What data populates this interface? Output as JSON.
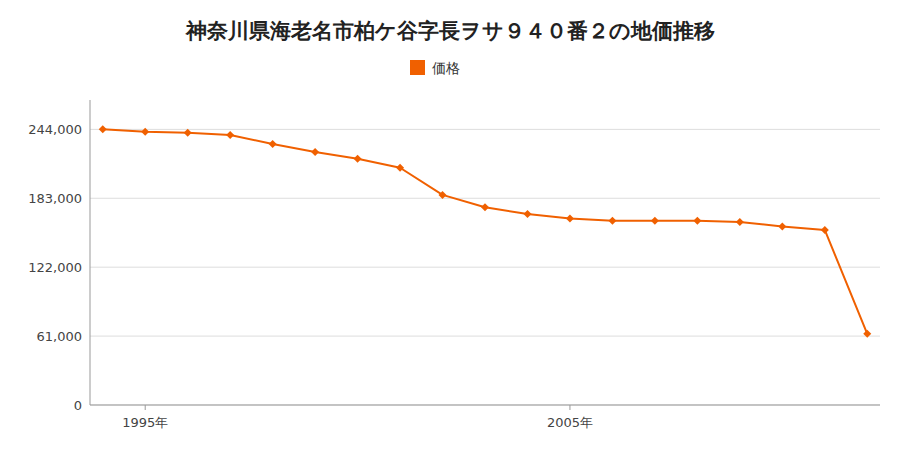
{
  "chart_data": {
    "type": "line",
    "title": "神奈川県海老名市柏ケ谷字長ヲサ９４０番２の地価推移",
    "x": [
      1994,
      1995,
      1996,
      1997,
      1998,
      1999,
      2000,
      2001,
      2002,
      2003,
      2004,
      2005,
      2006,
      2007,
      2008,
      2009,
      2010,
      2011,
      2012
    ],
    "series": [
      {
        "name": "価格",
        "color": "#f06000",
        "marker": "diamond",
        "values": [
          244000,
          242000,
          241000,
          239000,
          231000,
          224000,
          218000,
          210000,
          186000,
          175000,
          169000,
          165000,
          163000,
          163000,
          163000,
          162000,
          158000,
          155000,
          63000
        ]
      }
    ],
    "xlim": [
      1993.7,
      2012.3
    ],
    "xticks": [
      {
        "value": 1995,
        "label": "1995年"
      },
      {
        "value": 2005,
        "label": "2005年"
      }
    ],
    "ylim": [
      0,
      270000
    ],
    "yticks": [
      0,
      {
        "value": 61000,
        "label": "61,000"
      },
      {
        "value": 122000,
        "label": "122,000"
      },
      {
        "value": 183000,
        "label": "183,000"
      },
      {
        "value": 244000,
        "label": "244,000"
      }
    ],
    "grid": true,
    "legend": "top"
  }
}
